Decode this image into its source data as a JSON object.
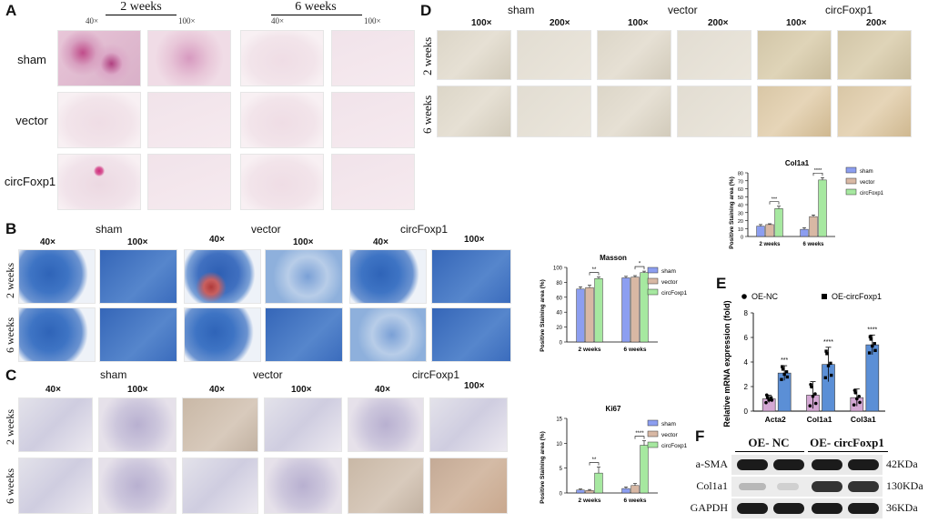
{
  "panel_letters": {
    "A": "A",
    "B": "B",
    "C": "C",
    "D": "D",
    "E": "E",
    "F": "F"
  },
  "panelA": {
    "time_2w": "2 weeks",
    "time_6w": "6 weeks",
    "mag_40": "40×",
    "mag_100": "100×",
    "rows": [
      "sham",
      "vector",
      "circFoxp1"
    ]
  },
  "panelB": {
    "groups": [
      "sham",
      "vector",
      "circFoxp1"
    ],
    "mag_40": "40×",
    "mag_100": "100×",
    "rows": [
      "2 weeks",
      "6 weeks"
    ]
  },
  "panelC": {
    "groups": [
      "sham",
      "vector",
      "circFoxp1"
    ],
    "mag_40": "40×",
    "mag_100": "100×",
    "rows": [
      "2 weeks",
      "6 weeks"
    ]
  },
  "panelD": {
    "groups": [
      "sham",
      "vector",
      "circFoxp1"
    ],
    "mag_100": "100×",
    "mag_200": "200×",
    "rows": [
      "2 weeks",
      "6 weeks"
    ]
  },
  "panelF": {
    "header_nc": "OE- NC",
    "header_circ": "OE- circFoxp1",
    "proteins": [
      "a-SMA",
      "Col1a1",
      "GAPDH"
    ],
    "sizes": [
      "42KDa",
      "130KDa",
      "36KDa"
    ]
  },
  "chart_data": [
    {
      "id": "masson",
      "type": "bar",
      "title": "Masson",
      "ylabel": "Positive Staining area (%)",
      "categories": [
        "2 weeks",
        "6 weeks"
      ],
      "ylim": [
        0,
        100
      ],
      "yticks": [
        0,
        20,
        40,
        60,
        80,
        100
      ],
      "series": [
        {
          "name": "sham",
          "color": "#8c9ef0",
          "values": [
            71,
            86
          ],
          "err": [
            3,
            2
          ]
        },
        {
          "name": "vector",
          "color": "#d8b8a4",
          "values": [
            73,
            87
          ],
          "err": [
            3,
            2
          ]
        },
        {
          "name": "circFoxp1",
          "color": "#a6e8a0",
          "values": [
            85,
            93
          ],
          "err": [
            2,
            2
          ]
        }
      ],
      "significance": [
        {
          "category": "2 weeks",
          "label": "**"
        },
        {
          "category": "6 weeks",
          "label": "*"
        }
      ],
      "legend": "right"
    },
    {
      "id": "ki67",
      "type": "bar",
      "title": "Ki67",
      "ylabel": "Positive Staining area (%)",
      "categories": [
        "2 weeks",
        "6 weeks"
      ],
      "ylim": [
        0,
        15
      ],
      "yticks": [
        0,
        5,
        10,
        15
      ],
      "series": [
        {
          "name": "sham",
          "color": "#8c9ef0",
          "values": [
            0.6,
            0.9
          ],
          "err": [
            0.2,
            0.3
          ]
        },
        {
          "name": "vector",
          "color": "#d8b8a4",
          "values": [
            0.5,
            1.5
          ],
          "err": [
            0.2,
            0.4
          ]
        },
        {
          "name": "circFoxp1",
          "color": "#a6e8a0",
          "values": [
            4.0,
            9.6
          ],
          "err": [
            1.2,
            0.9
          ]
        }
      ],
      "significance": [
        {
          "category": "2 weeks",
          "label": "**"
        },
        {
          "category": "6 weeks",
          "label": "****"
        }
      ],
      "legend": "right"
    },
    {
      "id": "col1a1",
      "type": "bar",
      "title": "Col1a1",
      "ylabel": "Positive Staining area (%)",
      "categories": [
        "2 weeks",
        "6 weeks"
      ],
      "ylim": [
        0,
        80
      ],
      "yticks": [
        0,
        10,
        20,
        30,
        40,
        50,
        60,
        70,
        80
      ],
      "series": [
        {
          "name": "sham",
          "color": "#8c9ef0",
          "values": [
            13,
            9
          ],
          "err": [
            2,
            2
          ]
        },
        {
          "name": "vector",
          "color": "#d8b8a4",
          "values": [
            15,
            25
          ],
          "err": [
            1,
            2
          ]
        },
        {
          "name": "circFoxp1",
          "color": "#a6e8a0",
          "values": [
            35,
            71
          ],
          "err": [
            3,
            3
          ]
        }
      ],
      "significance": [
        {
          "category": "2 weeks",
          "label": "***"
        },
        {
          "category": "6 weeks",
          "label": "****"
        }
      ],
      "legend": "right"
    },
    {
      "id": "mrna",
      "type": "bar",
      "ylabel": "Relative mRNA expression (fold)",
      "categories": [
        "Acta2",
        "Col1a1",
        "Col3a1"
      ],
      "ylim": [
        0,
        8
      ],
      "yticks": [
        0,
        2,
        4,
        6,
        8
      ],
      "series": [
        {
          "name": "OE-NC",
          "color": "#d4a8d4",
          "values": [
            1.0,
            1.3,
            1.1
          ],
          "err": [
            0.3,
            1.1,
            0.7
          ]
        },
        {
          "name": "OE-circFoxp1",
          "color": "#5b8fd6",
          "values": [
            3.1,
            3.8,
            5.4
          ],
          "err": [
            0.6,
            1.4,
            0.8
          ]
        }
      ],
      "significance": [
        {
          "category": "Acta2",
          "label": "***"
        },
        {
          "category": "Col1a1",
          "label": "****"
        },
        {
          "category": "Col3a1",
          "label": "****"
        }
      ],
      "legend": "top"
    }
  ]
}
